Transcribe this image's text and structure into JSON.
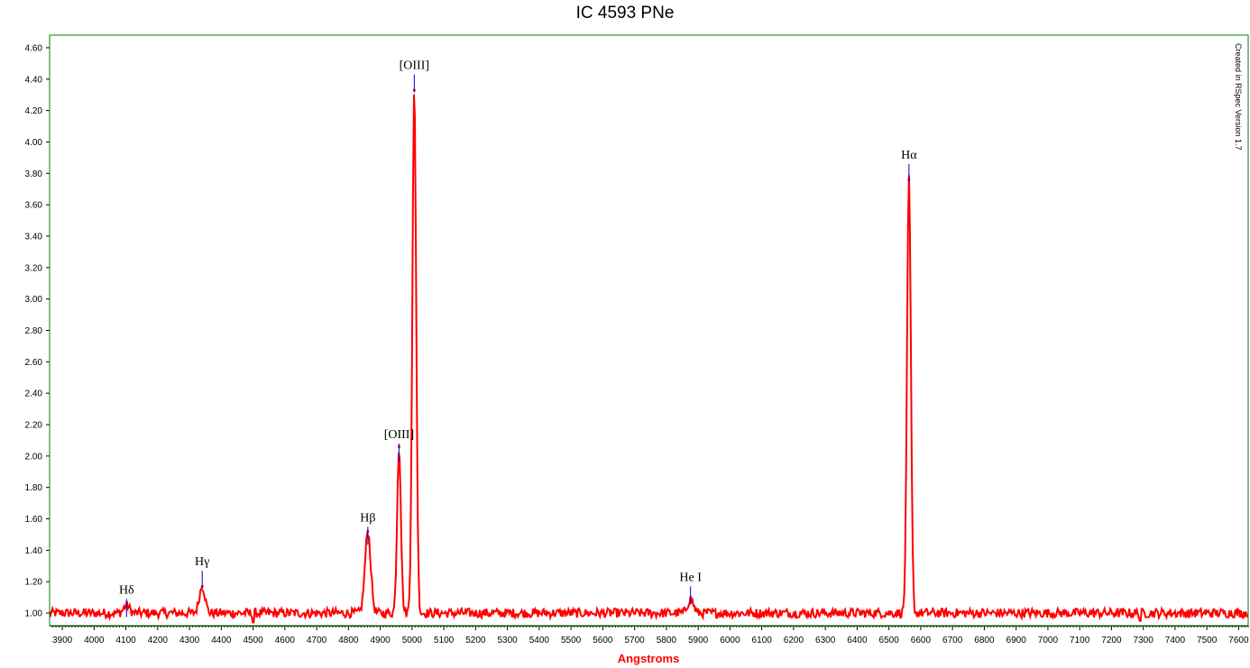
{
  "chart_data": {
    "type": "line",
    "title": "IC 4593 PNe",
    "xlabel": "Angstroms",
    "ylabel": "",
    "xlim": [
      3860,
      7630
    ],
    "ylim": [
      0.92,
      4.68
    ],
    "x_ticks": [
      3900,
      4000,
      4100,
      4200,
      4300,
      4400,
      4500,
      4600,
      4700,
      4800,
      4900,
      5000,
      5100,
      5200,
      5300,
      5400,
      5500,
      5600,
      5700,
      5800,
      5900,
      6000,
      6100,
      6200,
      6300,
      6400,
      6500,
      6600,
      6700,
      6800,
      6900,
      7000,
      7100,
      7200,
      7300,
      7400,
      7500,
      7600
    ],
    "y_ticks": [
      "1.00",
      "1.20",
      "1.40",
      "1.60",
      "1.80",
      "2.00",
      "2.20",
      "2.40",
      "2.60",
      "2.80",
      "3.00",
      "3.20",
      "3.40",
      "3.60",
      "3.80",
      "4.00",
      "4.20",
      "4.40",
      "4.60"
    ],
    "grid": false,
    "series": [
      {
        "color": "#ff0000",
        "baseline": 1.0,
        "peaks": [
          {
            "x": 4102,
            "y": 1.05
          },
          {
            "x": 4340,
            "y": 1.17
          },
          {
            "x": 4861,
            "y": 1.52
          },
          {
            "x": 4959,
            "y": 2.06
          },
          {
            "x": 5007,
            "y": 4.33
          },
          {
            "x": 5876,
            "y": 1.09
          },
          {
            "x": 6563,
            "y": 3.76
          }
        ],
        "dips": [
          {
            "x": 4500,
            "y": 0.94
          },
          {
            "x": 7290,
            "y": 0.95
          }
        ]
      }
    ],
    "annotations": [
      {
        "text": "Hδ",
        "x": 4102,
        "y": 1.09
      },
      {
        "text": "Hγ",
        "x": 4340,
        "y": 1.27
      },
      {
        "text": "Hβ",
        "x": 4861,
        "y": 1.55
      },
      {
        "text": "[OIII]",
        "x": 4959,
        "y": 2.08
      },
      {
        "text": "[OIII]",
        "x": 5007,
        "y": 4.43
      },
      {
        "text": "He I",
        "x": 5876,
        "y": 1.17
      },
      {
        "text": "Hα",
        "x": 6563,
        "y": 3.86
      }
    ],
    "credit": "Created in RSpec Version 1.7"
  },
  "colors": {
    "frame": "#008000",
    "series": "#ff0000",
    "marker": "#0000cc",
    "xlabel": "#ff0000"
  }
}
